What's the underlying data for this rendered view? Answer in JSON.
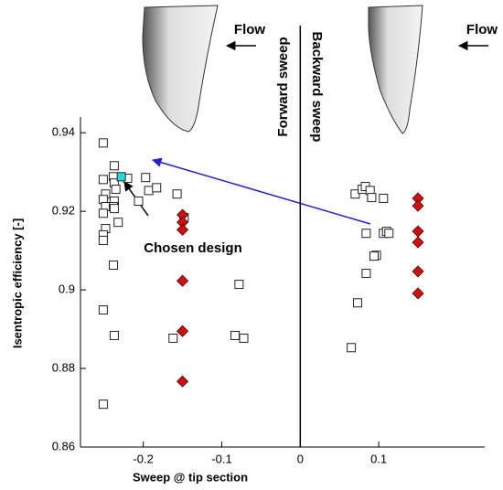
{
  "chart_data": {
    "type": "scatter",
    "x_label": "Sweep @ tip section",
    "y_label": "Isentropic efficiency [-]",
    "annotations": [
      "Chosen design",
      "Flow",
      "Flow",
      "Forward sweep",
      "Backward sweep"
    ],
    "xlim": [
      -0.28,
      0.235
    ],
    "xticks": [
      -0.2,
      -0.1,
      0,
      0.1
    ],
    "ylim": [
      0.86,
      0.944
    ],
    "yticks": [
      0.86,
      0.88,
      0.9,
      0.92,
      0.94
    ],
    "vline_x": 0,
    "series": [
      {
        "marker": "square",
        "color": "#ffffff",
        "x": [
          -0.251,
          -0.237,
          -0.251,
          -0.238,
          -0.237,
          -0.248,
          -0.235,
          -0.251,
          -0.237,
          -0.248,
          -0.238,
          -0.251,
          -0.248,
          -0.251,
          -0.251,
          -0.237,
          -0.232,
          -0.238,
          -0.251,
          -0.237,
          -0.251,
          -0.22,
          -0.206,
          -0.197,
          -0.193,
          -0.183,
          -0.157,
          -0.148,
          -0.162,
          -0.078,
          -0.083,
          -0.072,
          0.065,
          0.073,
          0.07,
          0.079,
          0.083,
          0.089,
          0.084,
          0.084,
          0.091,
          0.097,
          0.094,
          0.106,
          0.106,
          0.11,
          0.113
        ],
        "y": [
          0.9374,
          0.9316,
          0.9281,
          0.9288,
          0.9272,
          0.9244,
          0.9256,
          0.923,
          0.9226,
          0.9212,
          0.9212,
          0.9195,
          0.9156,
          0.914,
          0.9126,
          0.9207,
          0.9172,
          0.9063,
          0.8949,
          0.8884,
          0.8709,
          0.9284,
          0.9226,
          0.9286,
          0.9253,
          0.926,
          0.9244,
          0.9184,
          0.8877,
          0.9014,
          0.8884,
          0.8877,
          0.8853,
          0.8967,
          0.9244,
          0.9256,
          0.9263,
          0.9253,
          0.9144,
          0.9042,
          0.9235,
          0.9088,
          0.9086,
          0.9233,
          0.9144,
          0.9149,
          0.9144
        ]
      },
      {
        "marker": "diamond",
        "color": "#cc1111",
        "x": [
          -0.15,
          -0.15,
          -0.15,
          -0.15,
          -0.15,
          -0.15,
          0.15,
          0.15,
          0.15,
          0.15,
          0.15,
          0.15
        ],
        "y": [
          0.9191,
          0.9172,
          0.9153,
          0.9023,
          0.8895,
          0.8767,
          0.9233,
          0.9214,
          0.9149,
          0.9121,
          0.9047,
          0.8991
        ]
      },
      {
        "marker": "square",
        "color": "#22dddd",
        "x": [
          -0.228
        ],
        "y": [
          0.9288
        ]
      }
    ]
  }
}
